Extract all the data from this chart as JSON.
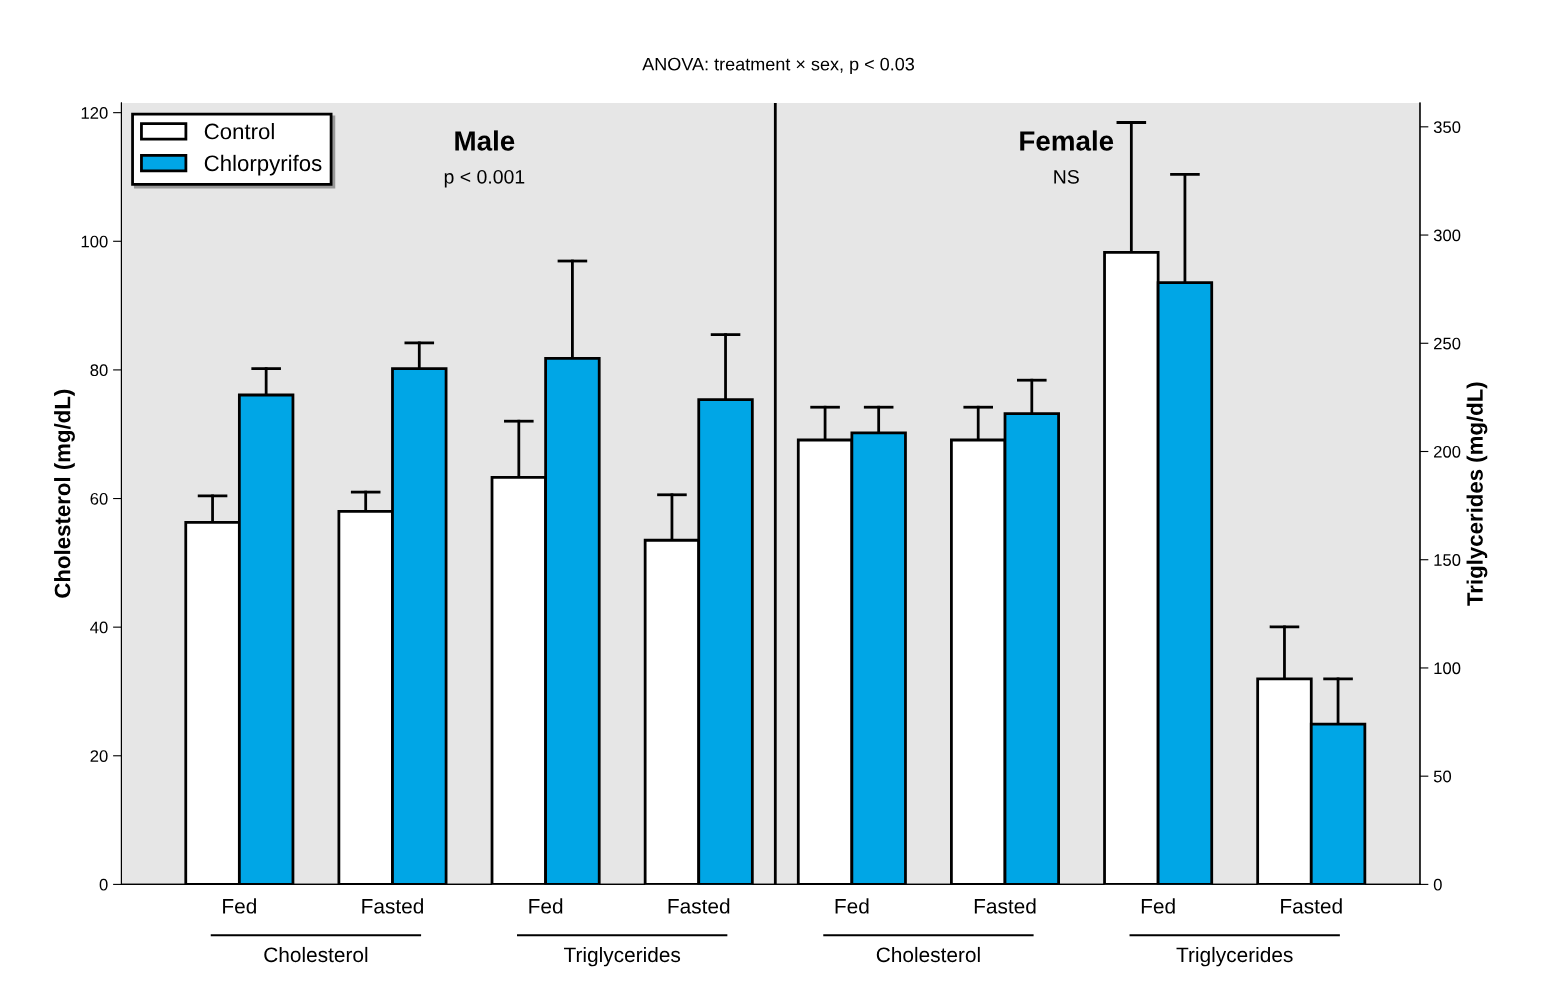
{
  "chart_data": {
    "type": "bar",
    "title": "ANOVA: treatment × sex, p < 0.03",
    "ylabel": "Cholesterol (mg/dL)",
    "y2label": "Triglycerides (mg/dL)",
    "categories": [
      "Fed",
      "Fasted",
      "Fed",
      "Fasted",
      "Fed",
      "Fasted",
      "Fed",
      "Fasted"
    ],
    "series": [
      {
        "name": "Control",
        "color": "#ffffff",
        "values": [
          56.3,
          58,
          null,
          null,
          69.1,
          69.1,
          null,
          null
        ],
        "errors": [
          [
            56.3,
            60.4
          ],
          [
            58,
            61
          ],
          null,
          null,
          [
            69.1,
            74.2
          ],
          [
            69.1,
            74.2
          ],
          null,
          null
        ]
      },
      {
        "name": "Chlorpyrifos",
        "color": "#00a6e6",
        "values": [
          76.1,
          80.2,
          null,
          null,
          70.2,
          73.2,
          null,
          null
        ],
        "errors": [
          [
            76.1,
            80.2
          ],
          [
            80.2,
            84.2
          ],
          null,
          null,
          [
            70.2,
            74.2
          ],
          [
            73.2,
            78.4
          ],
          null,
          null
        ]
      },
      {
        "color": "#ffffff",
        "axis": "y2",
        "values": [
          null,
          null,
          188,
          159,
          null,
          null,
          292,
          95
        ],
        "errors": [
          null,
          null,
          [
            188,
            214
          ],
          [
            159,
            180
          ],
          null,
          null,
          [
            292,
            352
          ],
          [
            95,
            119
          ]
        ]
      },
      {
        "color": "#00a6e6",
        "axis": "y2",
        "values": [
          null,
          null,
          243,
          224,
          null,
          null,
          278,
          74
        ],
        "errors": [
          null,
          null,
          [
            243,
            288
          ],
          [
            224,
            254
          ],
          null,
          null,
          [
            278,
            328
          ],
          [
            74,
            95
          ]
        ]
      }
    ],
    "ylim": [
      0,
      121.5
    ],
    "yticks": [
      0,
      20,
      40,
      60,
      80,
      100,
      120
    ],
    "y2lim": [
      0,
      361
    ],
    "y2ticks": [
      0,
      50,
      100,
      150,
      200,
      250,
      300,
      350
    ],
    "annotations": [
      "Male",
      "p < 0.001",
      "Female",
      "NS",
      "Cholesterol",
      "Triglycerides",
      "Cholesterol",
      "Triglycerides"
    ],
    "legend": "top left",
    "grid": false
  }
}
